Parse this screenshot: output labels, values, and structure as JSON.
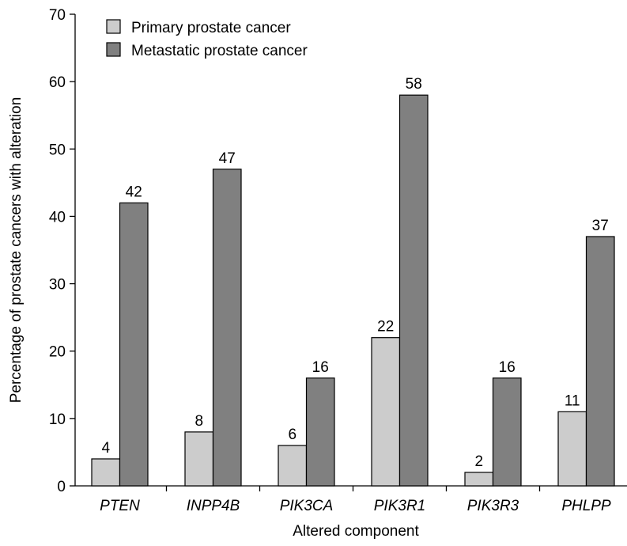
{
  "chart_data": {
    "type": "bar",
    "title": "",
    "xlabel": "Altered component",
    "ylabel": "Percentage of prostate cancers with alteration",
    "ylim": [
      0,
      70
    ],
    "yticks": [
      0,
      10,
      20,
      30,
      40,
      50,
      60,
      70
    ],
    "categories": [
      "PTEN",
      "INPP4B",
      "PIK3CA",
      "PIK3R1",
      "PIK3R3",
      "PHLPP"
    ],
    "series": [
      {
        "name": "Primary prostate cancer",
        "color": "#cccccc",
        "values": [
          4,
          8,
          6,
          22,
          2,
          11
        ]
      },
      {
        "name": "Metastatic prostate cancer",
        "color": "#808080",
        "values": [
          42,
          47,
          16,
          58,
          16,
          37
        ]
      }
    ],
    "legend_position": "top-left",
    "grid": false
  }
}
